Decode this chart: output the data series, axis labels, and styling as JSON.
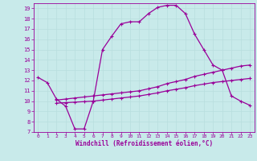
{
  "xlabel": "Windchill (Refroidissement éolien,°C)",
  "xlim": [
    -0.5,
    23.5
  ],
  "ylim": [
    7,
    19.5
  ],
  "yticks": [
    7,
    8,
    9,
    10,
    11,
    12,
    13,
    14,
    15,
    16,
    17,
    18,
    19
  ],
  "xticks": [
    0,
    1,
    2,
    3,
    4,
    5,
    6,
    7,
    8,
    9,
    10,
    11,
    12,
    13,
    14,
    15,
    16,
    17,
    18,
    19,
    20,
    21,
    22,
    23
  ],
  "bg_color": "#c8eaea",
  "line_color": "#990099",
  "grid_color": "#aad4d4",
  "curve1_x": [
    0,
    1,
    2,
    3,
    4,
    5,
    6,
    7,
    8,
    9,
    10,
    11,
    12,
    13,
    14,
    15,
    16,
    17,
    18,
    19,
    20,
    21,
    22,
    23
  ],
  "curve1_y": [
    12.3,
    11.8,
    10.2,
    9.5,
    7.3,
    7.3,
    10.0,
    15.0,
    16.3,
    17.5,
    17.7,
    17.7,
    18.5,
    19.1,
    19.3,
    19.3,
    18.5,
    16.5,
    15.0,
    13.5,
    13.0,
    10.5,
    10.0,
    9.6
  ],
  "curve2_x": [
    2,
    3,
    4,
    5,
    6,
    7,
    8,
    9,
    10,
    11,
    12,
    13,
    14,
    15,
    16,
    17,
    18,
    19,
    20,
    21,
    22,
    23
  ],
  "curve2_y": [
    10.1,
    10.2,
    10.3,
    10.4,
    10.5,
    10.6,
    10.7,
    10.8,
    10.9,
    11.0,
    11.2,
    11.4,
    11.7,
    11.9,
    12.1,
    12.4,
    12.6,
    12.8,
    13.0,
    13.2,
    13.4,
    13.5
  ],
  "curve3_x": [
    2,
    3,
    4,
    5,
    6,
    7,
    8,
    9,
    10,
    11,
    12,
    13,
    14,
    15,
    16,
    17,
    18,
    19,
    20,
    21,
    22,
    23
  ],
  "curve3_y": [
    9.8,
    9.85,
    9.9,
    9.95,
    10.0,
    10.1,
    10.2,
    10.3,
    10.4,
    10.5,
    10.65,
    10.8,
    11.0,
    11.15,
    11.3,
    11.5,
    11.65,
    11.8,
    11.9,
    12.0,
    12.1,
    12.2
  ]
}
